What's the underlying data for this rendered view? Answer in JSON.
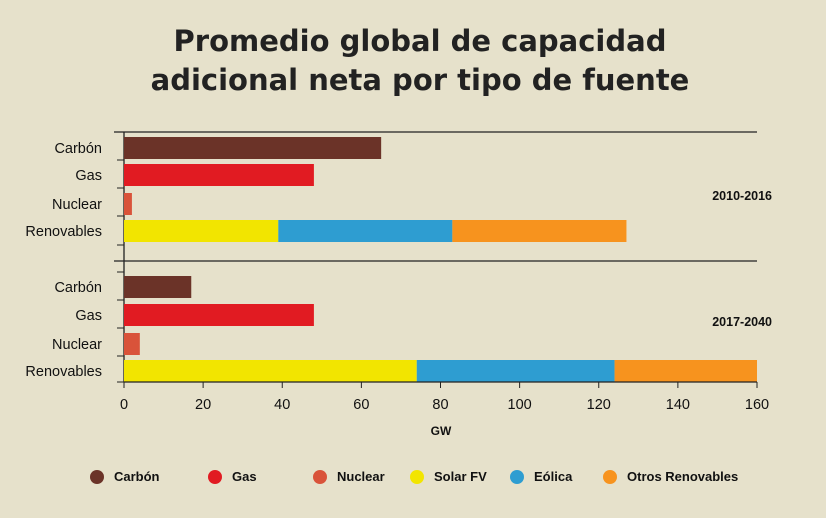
{
  "chart_data": {
    "type": "bar",
    "orientation": "horizontal",
    "stacked": true,
    "title": "Promedio global de capacidad adicional neta por tipo de fuente",
    "title_lines": [
      "Promedio global de capacidad",
      "adicional neta por tipo de fuente"
    ],
    "xlabel": "GW",
    "xlim": [
      0,
      160
    ],
    "xticks": [
      0,
      20,
      40,
      60,
      80,
      100,
      120,
      140,
      160
    ],
    "categories": [
      "Carbón",
      "Gas",
      "Nuclear",
      "Renovables"
    ],
    "legend_position": "bottom",
    "legend": [
      {
        "name": "Carbón",
        "color": "#6b3328"
      },
      {
        "name": "Gas",
        "color": "#e11b22"
      },
      {
        "name": "Nuclear",
        "color": "#d9533a"
      },
      {
        "name": "Solar FV",
        "color": "#f2e500"
      },
      {
        "name": "Eólica",
        "color": "#2e9dd1"
      },
      {
        "name": "Otros Renovables",
        "color": "#f7931e"
      }
    ],
    "panels": [
      {
        "label": "2010-2016",
        "bars": [
          {
            "category": "Carbón",
            "segments": [
              {
                "series": "Carbón",
                "value": 65
              }
            ]
          },
          {
            "category": "Gas",
            "segments": [
              {
                "series": "Gas",
                "value": 48
              }
            ]
          },
          {
            "category": "Nuclear",
            "segments": [
              {
                "series": "Nuclear",
                "value": 2
              }
            ]
          },
          {
            "category": "Renovables",
            "segments": [
              {
                "series": "Solar FV",
                "value": 39
              },
              {
                "series": "Eólica",
                "value": 44
              },
              {
                "series": "Otros Renovables",
                "value": 44
              }
            ]
          }
        ]
      },
      {
        "label": "2017-2040",
        "bars": [
          {
            "category": "Carbón",
            "segments": [
              {
                "series": "Carbón",
                "value": 17
              }
            ]
          },
          {
            "category": "Gas",
            "segments": [
              {
                "series": "Gas",
                "value": 48
              }
            ]
          },
          {
            "category": "Nuclear",
            "segments": [
              {
                "series": "Nuclear",
                "value": 4
              }
            ]
          },
          {
            "category": "Renovables",
            "segments": [
              {
                "series": "Solar FV",
                "value": 74
              },
              {
                "series": "Eólica",
                "value": 50
              },
              {
                "series": "Otros Renovables",
                "value": 36
              }
            ]
          }
        ]
      }
    ]
  }
}
